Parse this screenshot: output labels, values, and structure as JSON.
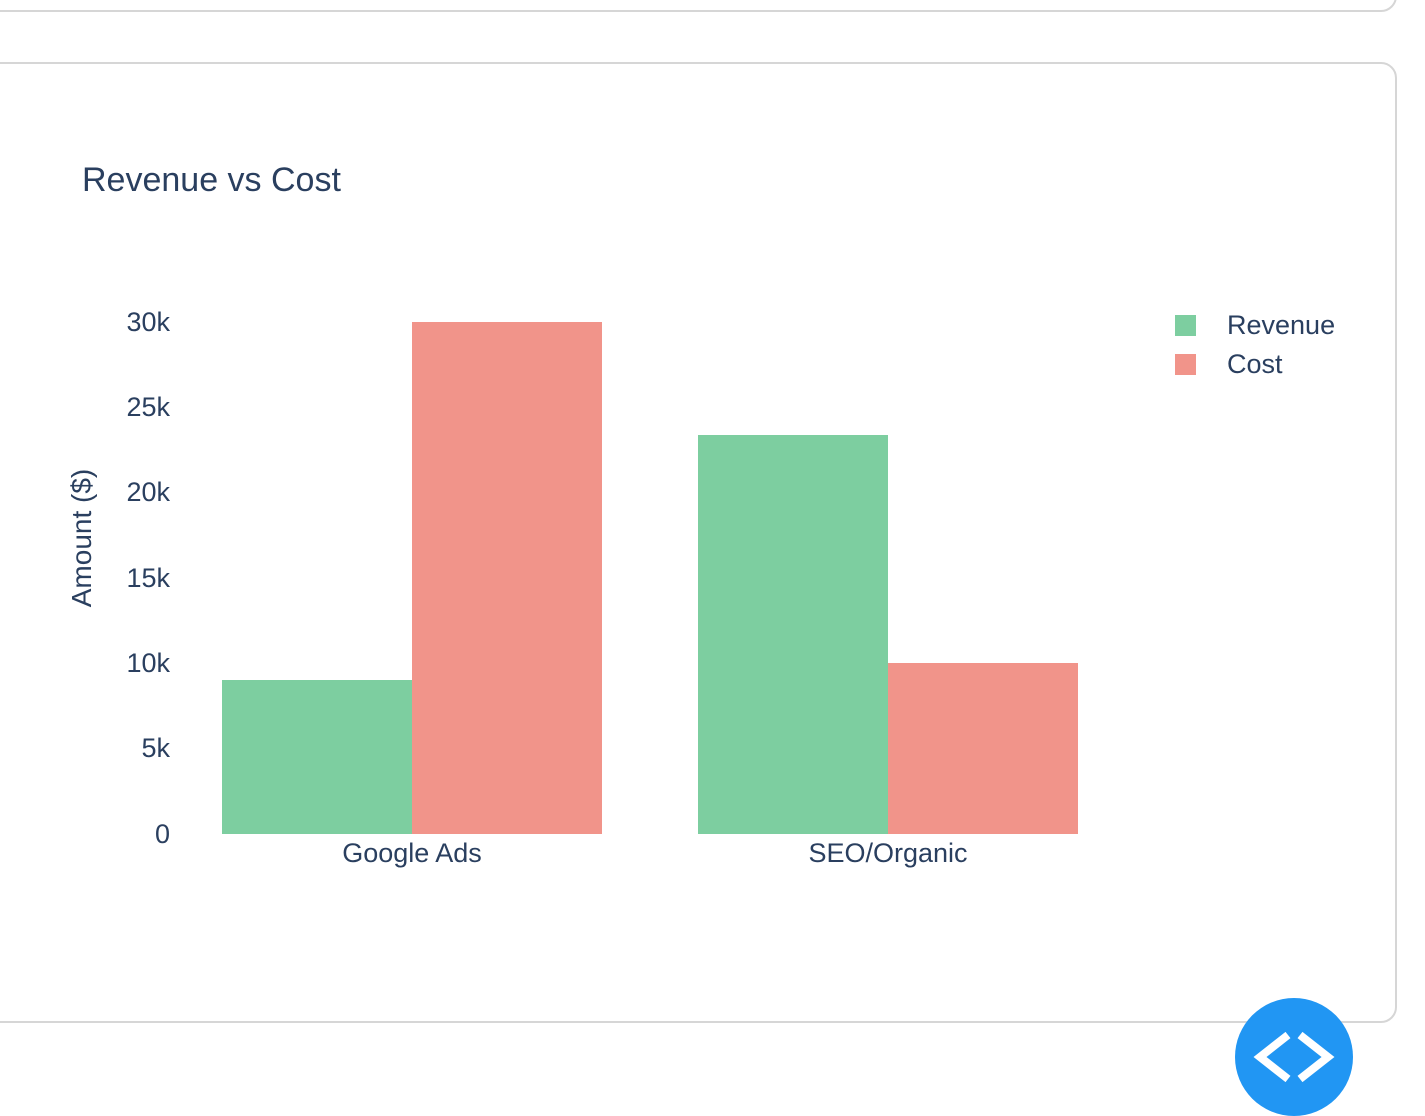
{
  "page": {
    "background_color": "#ffffff",
    "card_border_color": "#d6d6d6"
  },
  "chart": {
    "title": "Revenue vs Cost",
    "y_axis_title": "Amount ($)",
    "text_color": "#2a3f5f"
  },
  "chart_data": {
    "type": "bar",
    "title": "Revenue vs Cost",
    "categories": [
      "Google Ads",
      "SEO/Organic"
    ],
    "series": [
      {
        "name": "Revenue",
        "color": "#7DCEA0",
        "values": [
          9000,
          23400
        ]
      },
      {
        "name": "Cost",
        "color": "#F1948A",
        "values": [
          30000,
          10000
        ]
      }
    ],
    "xlabel": "",
    "ylabel": "Amount ($)",
    "ylim": [
      0,
      30000
    ],
    "yticks": [
      {
        "value": 0,
        "label": "0"
      },
      {
        "value": 5000,
        "label": "5k"
      },
      {
        "value": 10000,
        "label": "10k"
      },
      {
        "value": 15000,
        "label": "15k"
      },
      {
        "value": 20000,
        "label": "20k"
      },
      {
        "value": 25000,
        "label": "25k"
      },
      {
        "value": 30000,
        "label": "30k"
      }
    ],
    "grid": false,
    "plot_bgcolor": "#ffffff",
    "legend_position": "top-right",
    "bar_mode": "group"
  },
  "fab": {
    "color": "#2196F3",
    "icon": "code-icon"
  }
}
